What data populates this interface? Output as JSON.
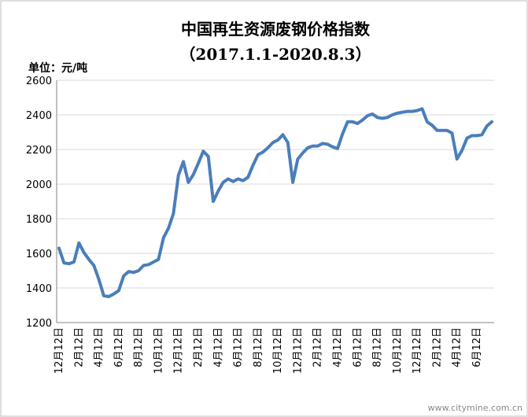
{
  "chart_data": {
    "type": "line",
    "title": "中国再生资源废钢价格指数",
    "subtitle": "（2017.1.1-2020.8.3）",
    "y_axis_label": "单位：元/吨",
    "watermark": "www.citymine.com.cn",
    "categories": [
      "12月12日",
      null,
      null,
      null,
      "2月12日",
      null,
      null,
      null,
      "4月12日",
      null,
      null,
      null,
      "6月12日",
      null,
      null,
      null,
      "8月12日",
      null,
      null,
      null,
      "10月12日",
      null,
      null,
      null,
      "12月12日",
      null,
      null,
      null,
      "2月12日",
      null,
      null,
      null,
      "4月12日",
      null,
      null,
      null,
      "6月12日",
      null,
      null,
      null,
      "8月12日",
      null,
      null,
      null,
      "10月12日",
      null,
      null,
      null,
      "12月12日",
      null,
      null,
      null,
      "2月12日",
      null,
      null,
      null,
      "4月12日",
      null,
      null,
      null,
      "6月12日",
      null,
      null,
      null,
      "8月12日",
      null,
      null,
      null,
      "10月12日",
      null,
      null,
      null,
      "12月12日",
      null,
      null,
      null,
      "2月12日",
      null,
      null,
      null,
      "4月12日",
      null,
      null,
      null,
      "6月12日",
      null,
      null,
      null
    ],
    "series": [
      {
        "name": "废钢价格指数",
        "color": "#4a7ebb",
        "values": [
          1630,
          1545,
          1540,
          1550,
          1660,
          1605,
          1565,
          1530,
          1450,
          1355,
          1350,
          1365,
          1385,
          1470,
          1495,
          1490,
          1500,
          1530,
          1535,
          1550,
          1565,
          1690,
          1745,
          1830,
          2050,
          2130,
          2010,
          2055,
          2120,
          2190,
          2160,
          1900,
          1960,
          2010,
          2030,
          2015,
          2030,
          2020,
          2040,
          2110,
          2170,
          2185,
          2210,
          2240,
          2255,
          2285,
          2240,
          2010,
          2145,
          2180,
          2210,
          2220,
          2220,
          2235,
          2230,
          2215,
          2205,
          2290,
          2360,
          2360,
          2350,
          2370,
          2395,
          2405,
          2385,
          2380,
          2385,
          2400,
          2410,
          2415,
          2420,
          2420,
          2425,
          2435,
          2360,
          2340,
          2310,
          2310,
          2310,
          2295,
          2145,
          2195,
          2265,
          2280,
          2280,
          2285,
          2335,
          2360
        ]
      }
    ],
    "ylim": [
      1200,
      2600
    ],
    "yticks": [
      1200,
      1400,
      1600,
      1800,
      2000,
      2200,
      2400,
      2600
    ],
    "grid": true
  }
}
